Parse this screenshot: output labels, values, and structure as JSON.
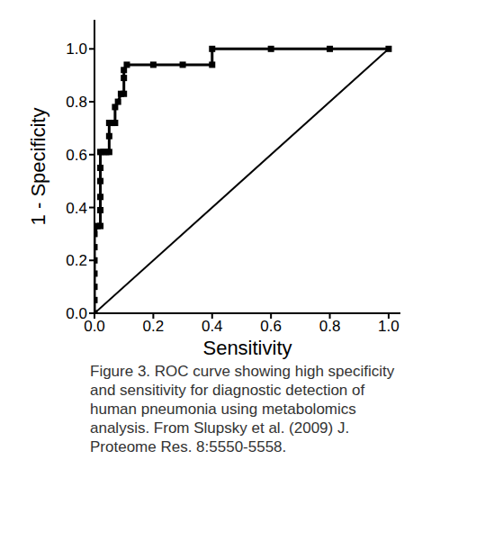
{
  "chart_data": {
    "type": "line",
    "x_label": "Sensitivity",
    "y_label": "1 - Specificity",
    "caption": "Figure 3. ROC curve showing high specificity and sensitivity for diagnostic detection of human pneumonia using metabolomics analysis. From Slupsky et al. (2009) J. Proteome Res. 8:5550-5558.",
    "xlim": [
      0,
      1.04
    ],
    "ylim": [
      0,
      1.11
    ],
    "xticks": [
      {
        "value": 0,
        "label": "0.0"
      },
      0.2,
      0.4,
      0.6,
      0.8,
      {
        "value": 1,
        "label": "1.0"
      }
    ],
    "yticks": [
      {
        "value": 0,
        "label": "0.0"
      },
      0.2,
      0.4,
      0.6,
      0.8,
      {
        "value": 1,
        "label": "1.0"
      }
    ],
    "grid": false,
    "series": [
      {
        "color": "#000000",
        "marker": "square",
        "line_style": "solid",
        "x": [
          0,
          0,
          0,
          0,
          0,
          0,
          0,
          0.01,
          0.02,
          0.02,
          0.02,
          0.02,
          0.02,
          0.02,
          0.03,
          0.04,
          0.05,
          0.05,
          0.05,
          0.06,
          0.07,
          0.07,
          0.08,
          0.09,
          0.1,
          0.1,
          0.1,
          0.11,
          0.2,
          0.3,
          0.4,
          0.4,
          0.6,
          0.8,
          1.0
        ],
        "values": [
          0,
          0.05,
          0.1,
          0.15,
          0.2,
          0.25,
          0.3,
          0.33,
          0.33,
          0.39,
          0.44,
          0.5,
          0.55,
          0.61,
          0.61,
          0.61,
          0.61,
          0.67,
          0.72,
          0.72,
          0.72,
          0.78,
          0.8,
          0.83,
          0.83,
          0.89,
          0.92,
          0.94,
          0.94,
          0.94,
          0.94,
          1.0,
          1.0,
          1.0,
          1.0
        ]
      },
      {
        "color": "#000000",
        "marker": "none",
        "line_style": "solid",
        "x": [
          0,
          1.0
        ],
        "values": [
          0,
          1.0
        ]
      }
    ]
  }
}
